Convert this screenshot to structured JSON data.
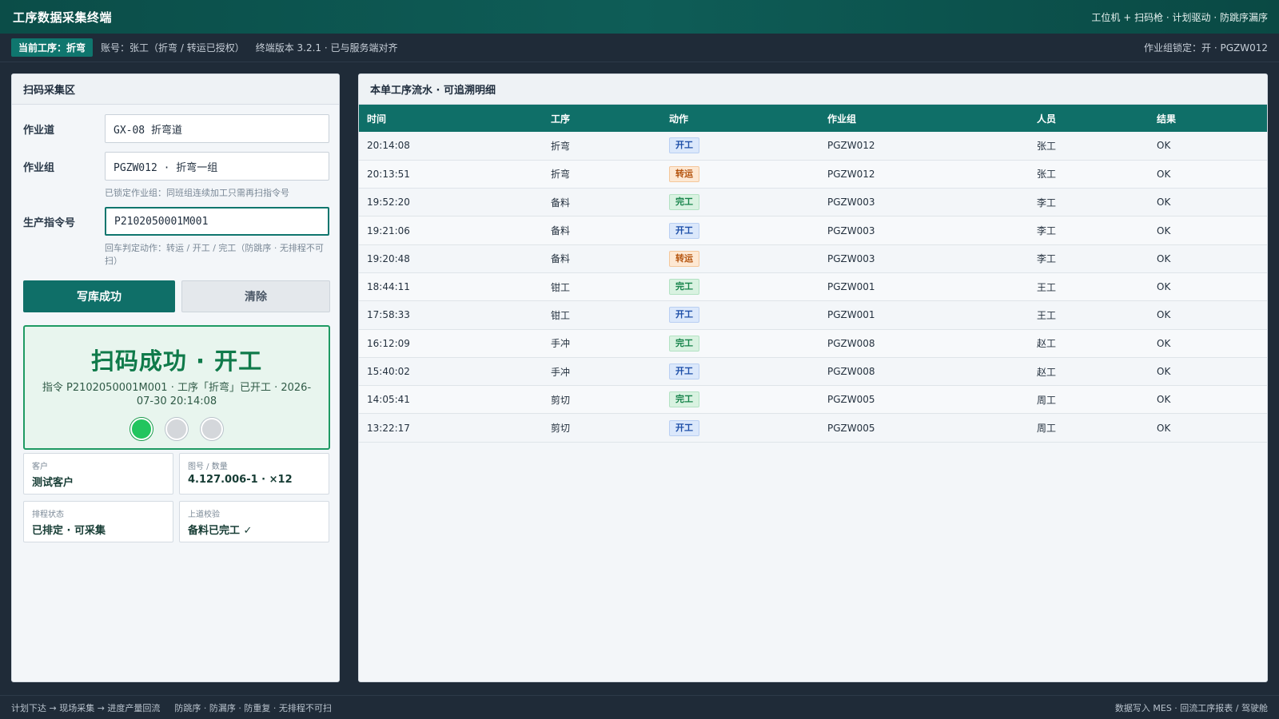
{
  "header": {
    "title": "工序数据采集终端",
    "tagline": "工位机 + 扫码枪 · 计划驱动 · 防跳序漏序"
  },
  "infobar": {
    "current_process": "当前工序：折弯",
    "account": "账号：张工（折弯 / 转运已授权）",
    "version": "终端版本 3.2.1 · 已与服务端对齐",
    "group_lock": "作业组锁定：开 · PGZW012"
  },
  "scan_panel": {
    "title": "扫码采集区",
    "fields": {
      "lane_label": "作业道",
      "lane_value": "GX-08 折弯道",
      "group_label": "作业组",
      "group_value": "PGZW012 · 折弯一组",
      "group_hint": "已锁定作业组：同班组连续加工只需再扫指令号",
      "order_label": "生产指令号",
      "order_value": "P2102050001M001",
      "order_hint": "回车判定动作：转运 / 开工 / 完工（防跳序 · 无排程不可扫）"
    },
    "buttons": {
      "submit": "写库成功",
      "clear": "清除"
    },
    "result": {
      "title": "扫码成功 · 开工",
      "detail": "指令 P2102050001M001 · 工序「折弯」已开工 · 2026-07-30 20:14:08",
      "lights": [
        "green",
        "gray",
        "gray"
      ]
    },
    "cards": [
      {
        "label": "客户",
        "value": "测试客户"
      },
      {
        "label": "图号 / 数量",
        "value": "4.127.006-1 · ×12"
      },
      {
        "label": "排程状态",
        "value": "已排定 · 可采集"
      },
      {
        "label": "上道校验",
        "value": "备料已完工 ✓"
      }
    ]
  },
  "log_panel": {
    "title": "本单工序流水 · 可追溯明细",
    "columns": [
      "时间",
      "工序",
      "动作",
      "作业组",
      "人员",
      "结果"
    ],
    "rows": [
      [
        "20:14:08",
        "折弯",
        "开工",
        "PGZW012",
        "张工",
        "OK"
      ],
      [
        "20:13:51",
        "折弯",
        "转运",
        "PGZW012",
        "张工",
        "OK"
      ],
      [
        "19:52:20",
        "备料",
        "完工",
        "PGZW003",
        "李工",
        "OK"
      ],
      [
        "19:21:06",
        "备料",
        "开工",
        "PGZW003",
        "李工",
        "OK"
      ],
      [
        "19:20:48",
        "备料",
        "转运",
        "PGZW003",
        "李工",
        "OK"
      ],
      [
        "18:44:11",
        "钳工",
        "完工",
        "PGZW001",
        "王工",
        "OK"
      ],
      [
        "17:58:33",
        "钳工",
        "开工",
        "PGZW001",
        "王工",
        "OK"
      ],
      [
        "16:12:09",
        "手冲",
        "完工",
        "PGZW008",
        "赵工",
        "OK"
      ],
      [
        "15:40:02",
        "手冲",
        "开工",
        "PGZW008",
        "赵工",
        "OK"
      ],
      [
        "14:05:41",
        "剪切",
        "完工",
        "PGZW005",
        "周工",
        "OK"
      ],
      [
        "13:22:17",
        "剪切",
        "开工",
        "PGZW005",
        "周工",
        "OK"
      ]
    ]
  },
  "footer": {
    "flow": "计划下达 → 现场采集 → 进度产量回流",
    "rules": "防跳序 · 防漏序 · 防重复 · 无排程不可扫",
    "right": "数据写入 MES · 回流工序报表 / 驾驶舱"
  },
  "colors": {
    "brand": "#0f6f68",
    "success": "#22c55e",
    "tag_start": "#1e4fa8",
    "tag_transfer": "#b4530d",
    "tag_done": "#16834a"
  }
}
